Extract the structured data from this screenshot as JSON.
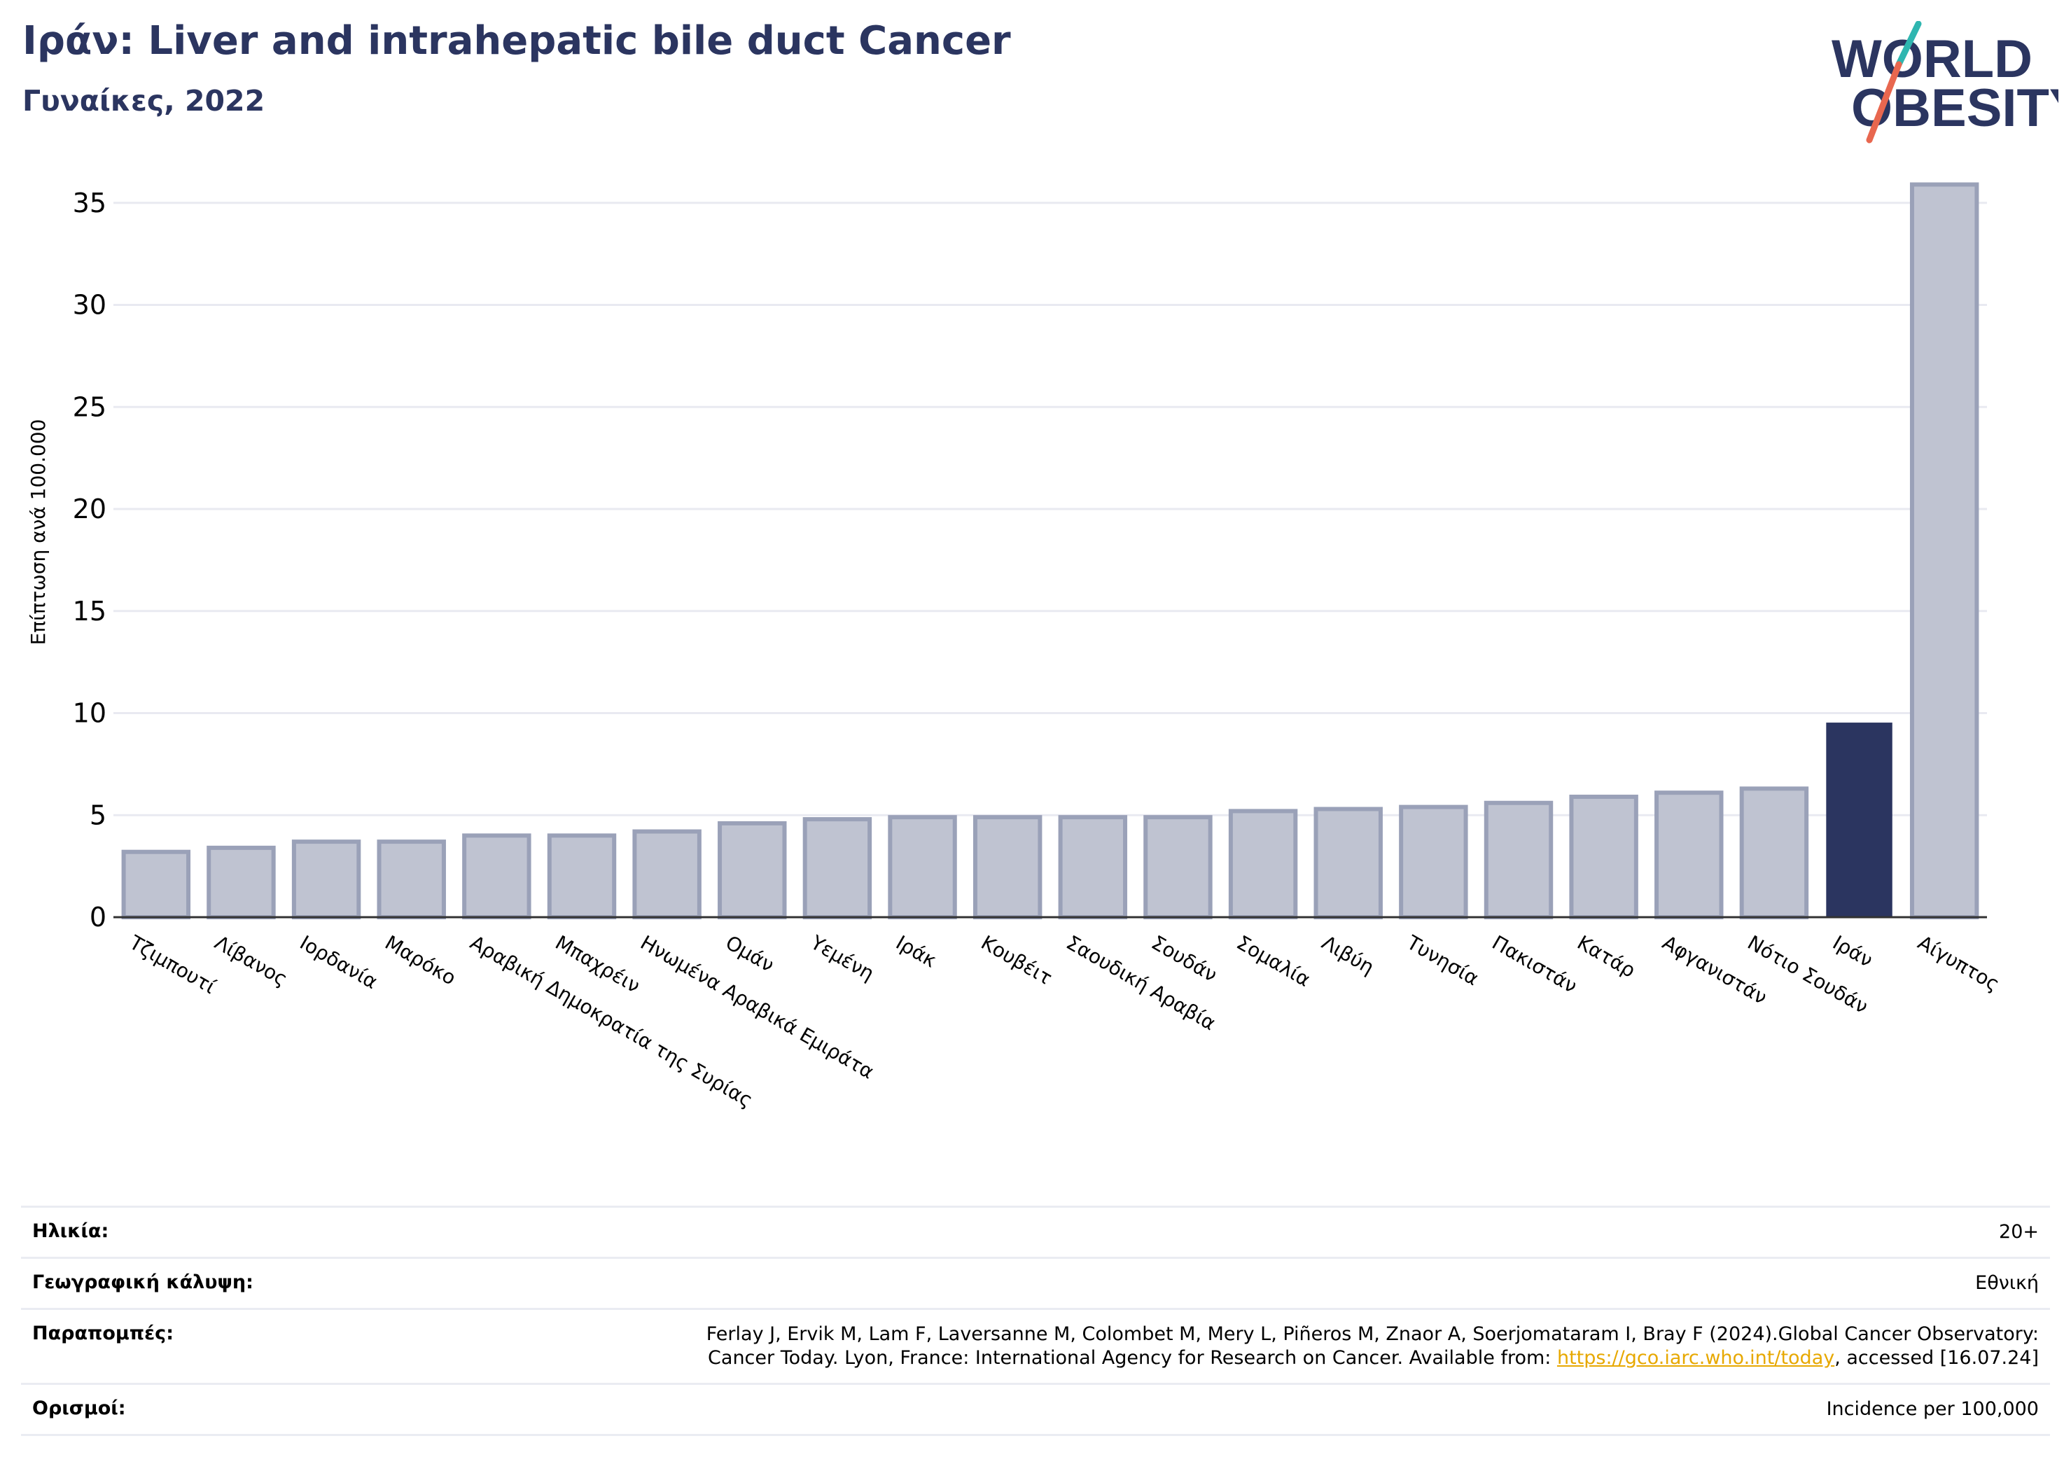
{
  "header": {
    "title": "Ιράν: Liver and intrahepatic bile duct Cancer",
    "subtitle": "Γυναίκες, 2022"
  },
  "logo": {
    "line1": "WORLD",
    "line2": "OBESITY"
  },
  "colors": {
    "bar": "#bfc3d1",
    "bar_stroke": "#9aa1b8",
    "highlight": "#2b3560",
    "grid": "#e9eaf1",
    "title": "#2b3560",
    "link": "#e7a800"
  },
  "chart_data": {
    "type": "bar",
    "ylabel": "Επίπτωση ανά 100.000",
    "ylim": [
      0,
      37
    ],
    "yticks": [
      0,
      5,
      10,
      15,
      20,
      25,
      30,
      35
    ],
    "grid": true,
    "highlight": "Ιράν",
    "categories": [
      "Τζιμπουτί",
      "Λίβανος",
      "Ιορδανία",
      "Μαρόκο",
      "Αραβική Δημοκρατία της Συρίας",
      "Μπαχρέιν",
      "Ηνωμένα Αραβικά Εμιράτα",
      "Ομάν",
      "Υεμένη",
      "Ιράκ",
      "Κουβέιτ",
      "Σαουδική Αραβία",
      "Σουδάν",
      "Σομαλία",
      "Λιβύη",
      "Τυνησία",
      "Πακιστάν",
      "Κατάρ",
      "Αφγανιστάν",
      "Νότιο Σουδάν",
      "Ιράν",
      "Αίγυπτος"
    ],
    "values": [
      3.2,
      3.4,
      3.7,
      3.7,
      4.0,
      4.0,
      4.2,
      4.6,
      4.8,
      4.9,
      4.9,
      4.9,
      4.9,
      5.2,
      5.3,
      5.4,
      5.6,
      5.9,
      6.1,
      6.3,
      9.5,
      35.9
    ]
  },
  "meta": {
    "age_label": "Ηλικία:",
    "age_value": "20+",
    "coverage_label": "Γεωγραφική κάλυψη:",
    "coverage_value": "Εθνική",
    "refs_label": "Παραπομπές:",
    "refs_text_1": "Ferlay J, Ervik M, Lam F, Laversanne M, Colombet M, Mery L, Piñeros M, Znaor A, Soerjomataram I, Bray F (2024).Global Cancer Observatory:",
    "refs_text_2a": "Cancer Today. Lyon, France: International Agency for Research on Cancer. Available from: ",
    "refs_link": "https://gco.iarc.who.int/today",
    "refs_text_2b": ", accessed [16.07.24]",
    "defs_label": "Ορισμοί:",
    "defs_value": "Incidence per 100,000"
  }
}
